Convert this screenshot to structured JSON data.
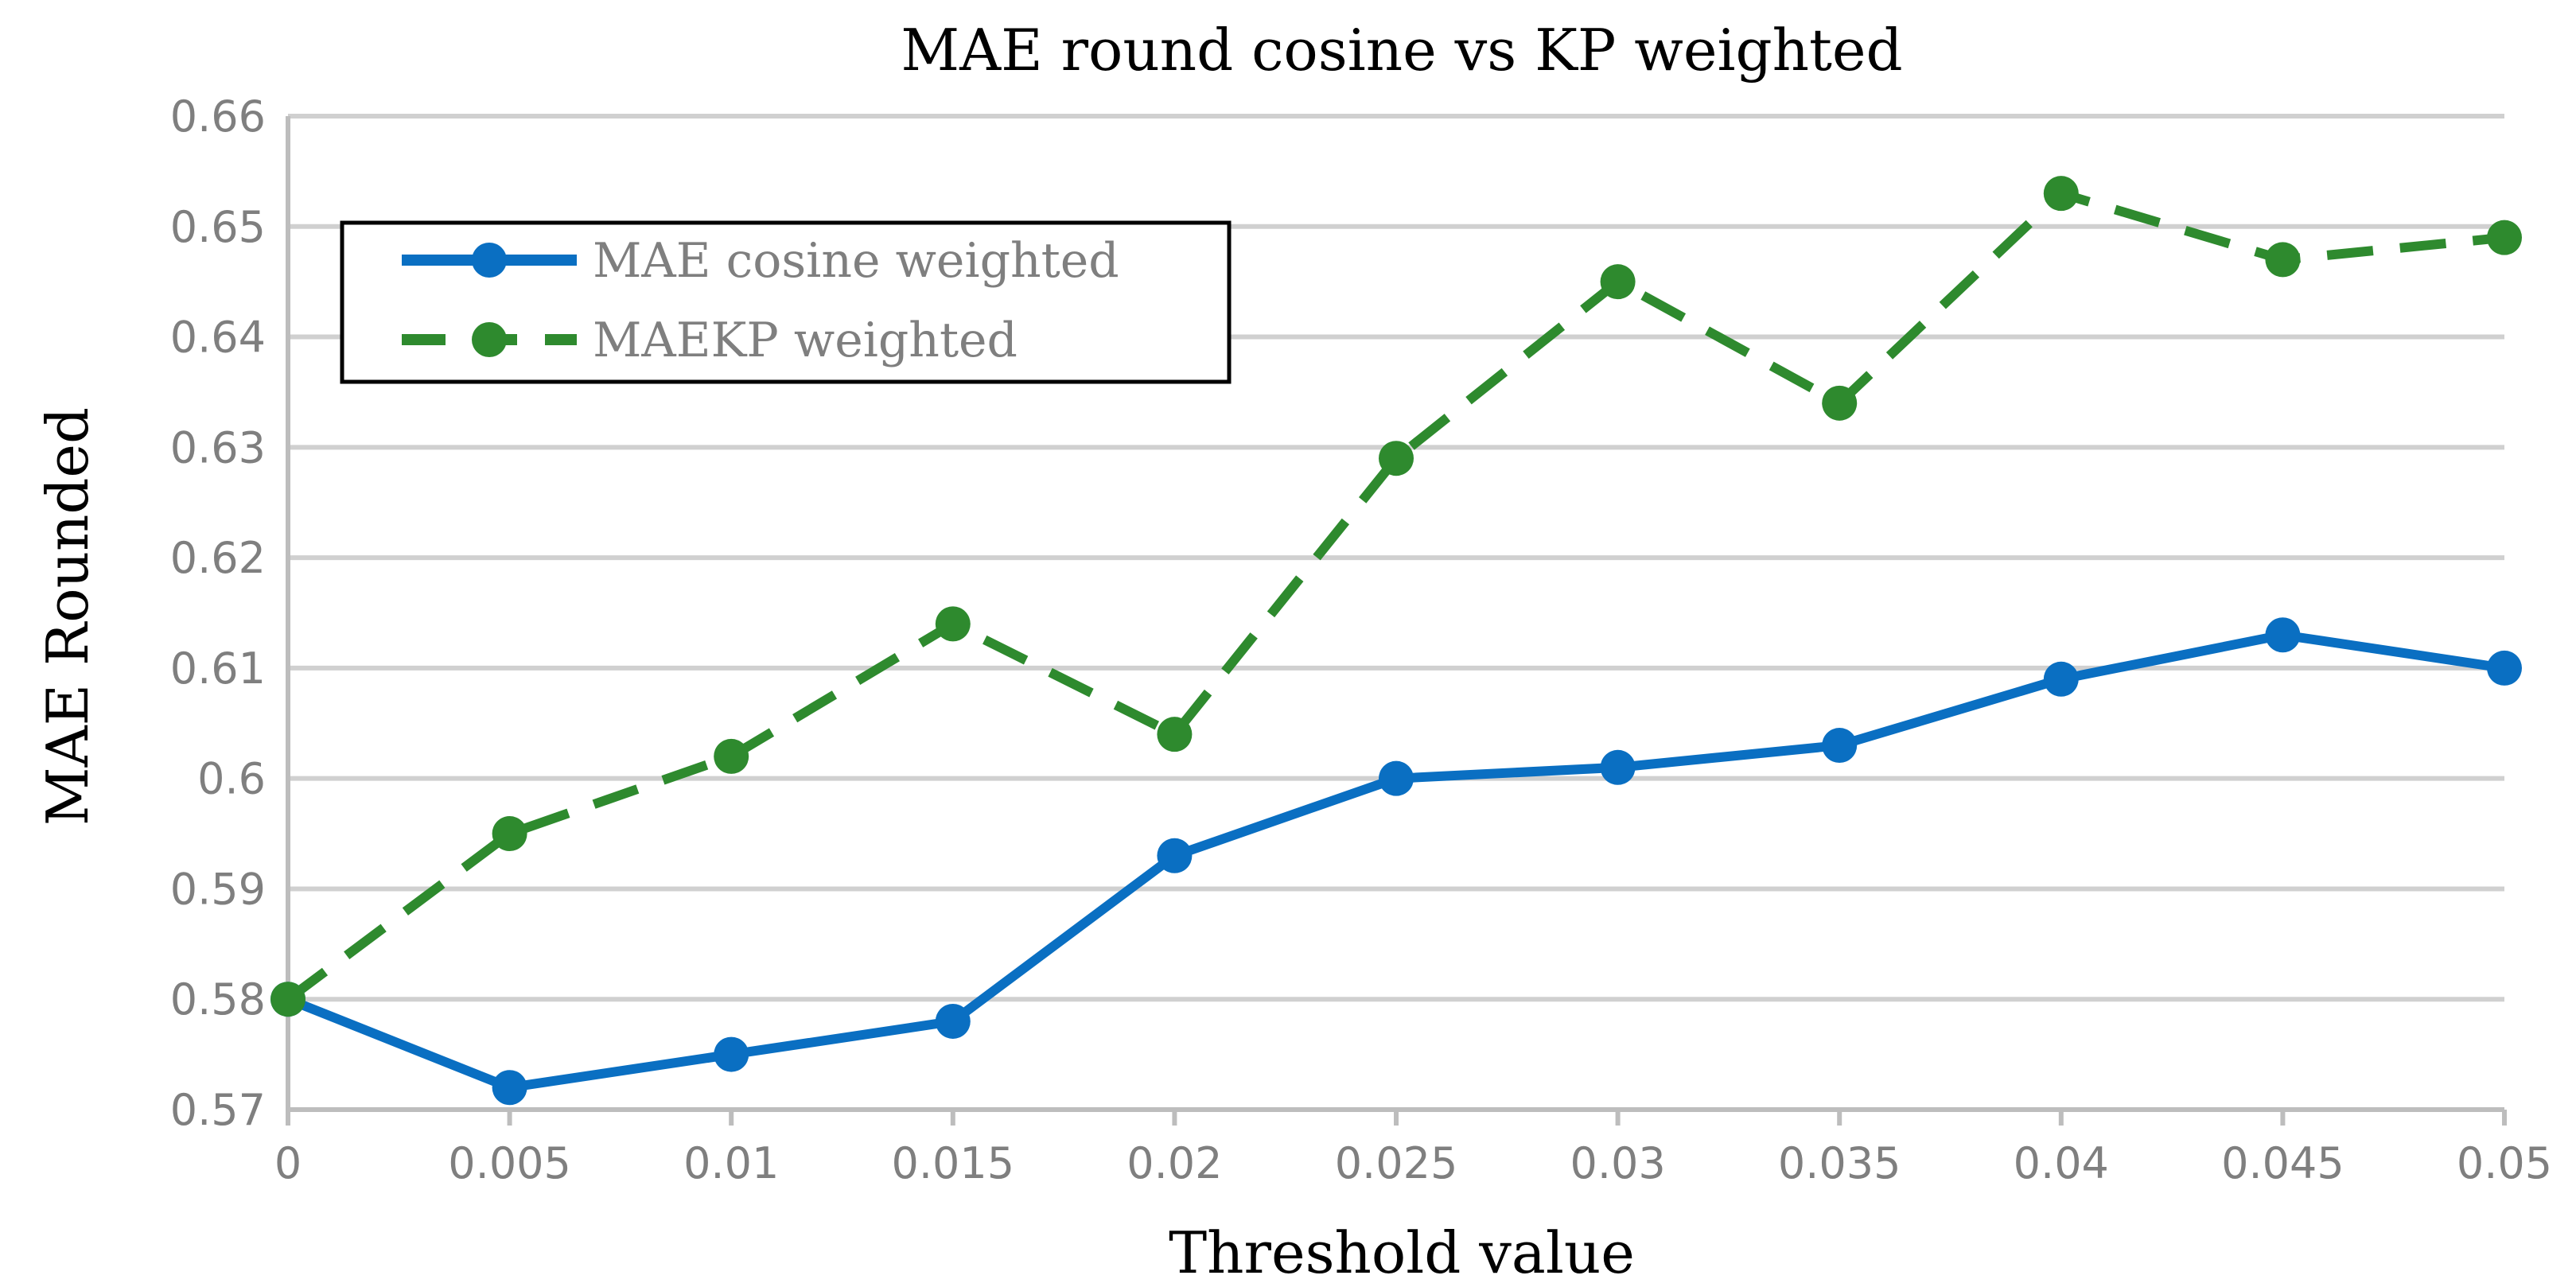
{
  "colors": {
    "series1": "#0a6fc2",
    "series2": "#2e8a2e"
  },
  "chart_data": {
    "type": "line",
    "title": "MAE round cosine vs KP weighted",
    "xlabel": "Threshold value",
    "ylabel": "MAE Rounded",
    "categories": [
      "0",
      "0.005",
      "0.01",
      "0.015",
      "0.02",
      "0.025",
      "0.03",
      "0.035",
      "0.04",
      "0.045",
      "0.05"
    ],
    "yticks": [
      "0.57",
      "0.58",
      "0.59",
      "0.6",
      "0.61",
      "0.62",
      "0.63",
      "0.64",
      "0.65",
      "0.66"
    ],
    "ylim": [
      0.57,
      0.66
    ],
    "grid": true,
    "legend_position": "top-left",
    "series": [
      {
        "name": "MAE cosine weighted",
        "style": "solid",
        "values": [
          0.58,
          0.572,
          0.575,
          0.578,
          0.593,
          0.6,
          0.601,
          0.603,
          0.609,
          0.613,
          0.61
        ]
      },
      {
        "name": "MAEKP weighted",
        "style": "dashed",
        "values": [
          0.58,
          0.595,
          0.602,
          0.614,
          0.604,
          0.629,
          0.645,
          0.634,
          0.653,
          0.647,
          0.649
        ]
      }
    ]
  }
}
